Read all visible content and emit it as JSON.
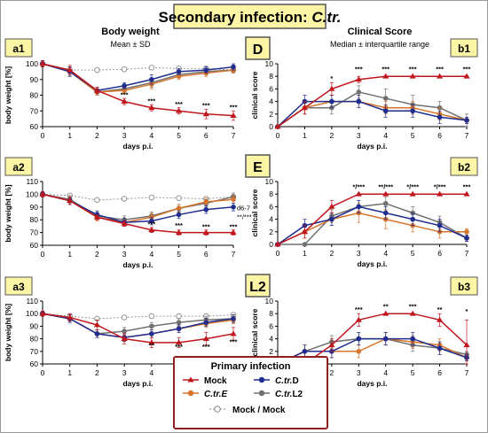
{
  "figure": {
    "title_prefix": "Secondary infection: ",
    "title_pathogen": "C.tr.",
    "left_header": "Body weight",
    "left_subheader": "Mean ± SD",
    "right_header": "Clinical Score",
    "right_subheader": "Median ± interquartile range"
  },
  "colors": {
    "mock": "#c0161d",
    "ctrD": "#1f2d8f",
    "ctrE": "#d6742b",
    "ctrL2": "#707070",
    "mockmock": "#8a8a8a",
    "title_box_fill": "#fdf5a6",
    "title_box_stroke": "#555555",
    "legend_border": "#8f1f1f"
  },
  "legend": {
    "title": "Primary infection",
    "mock": "Mock",
    "ctrD_prefix": "C.tr.",
    "ctrD_suffix": "D",
    "ctrE_prefix": "C.tr.",
    "ctrE_suffix": "E",
    "ctrL2_prefix": "C.tr.",
    "ctrL2_suffix": "L2",
    "mockmock": "Mock / Mock"
  },
  "chart_data": [
    {
      "id": "a1",
      "panel_label": "a1",
      "type": "line",
      "title": "",
      "xlabel": "days p.i.",
      "ylabel": "body weight [%]",
      "x": [
        0,
        1,
        2,
        3,
        4,
        5,
        6,
        7
      ],
      "xticks": [
        "0",
        "1",
        "2",
        "3",
        "4",
        "5",
        "6",
        "7"
      ],
      "ylim": [
        60,
        100
      ],
      "yticks": [
        "60",
        "70",
        "80",
        "90",
        "100"
      ],
      "series": [
        {
          "key": "mockmock",
          "values": [
            100,
            96,
            96,
            96.5,
            97.5,
            97,
            97,
            96
          ],
          "err": [
            1,
            1,
            1,
            1,
            1,
            1,
            1,
            1
          ]
        },
        {
          "key": "ctrL2",
          "values": [
            100,
            95,
            82,
            84,
            88,
            93,
            95,
            96
          ],
          "err": [
            2,
            3,
            2,
            2,
            3,
            2,
            2,
            2
          ]
        },
        {
          "key": "ctrE",
          "values": [
            100,
            95,
            82,
            83,
            87,
            92,
            94,
            96
          ],
          "err": [
            2,
            3,
            2,
            2,
            3,
            2,
            2,
            2
          ]
        },
        {
          "key": "ctrD",
          "values": [
            100,
            95,
            83,
            86,
            90,
            95,
            96,
            98
          ],
          "err": [
            2,
            3,
            2,
            2,
            3,
            2,
            2,
            2
          ]
        },
        {
          "key": "mock",
          "values": [
            100,
            96,
            83,
            76,
            72,
            70,
            68,
            67
          ],
          "err": [
            2,
            3,
            2,
            2,
            2,
            2,
            3,
            3
          ]
        }
      ],
      "annotations": [
        {
          "x": 3,
          "y": 79,
          "text": "***"
        },
        {
          "x": 4,
          "y": 75,
          "text": "***"
        },
        {
          "x": 5,
          "y": 73,
          "text": "***"
        },
        {
          "x": 6,
          "y": 72,
          "text": "***"
        },
        {
          "x": 7,
          "y": 71,
          "text": "***"
        }
      ]
    },
    {
      "id": "a2",
      "panel_label": "a2",
      "type": "line",
      "title": "",
      "xlabel": "days p.i.",
      "ylabel": "body weight [%]",
      "x": [
        0,
        1,
        2,
        3,
        4,
        5,
        6,
        7
      ],
      "xticks": [
        "0",
        "1",
        "2",
        "3",
        "4",
        "5",
        "6",
        "7"
      ],
      "ylim": [
        60,
        110
      ],
      "yticks": [
        "60",
        "70",
        "80",
        "90",
        "100",
        "110"
      ],
      "series": [
        {
          "key": "mockmock",
          "values": [
            100,
            99,
            95.5,
            96.5,
            97.5,
            97,
            96.5,
            98
          ],
          "err": [
            1,
            1,
            1,
            1,
            1,
            1,
            1,
            1
          ]
        },
        {
          "key": "ctrL2",
          "values": [
            100,
            96,
            83,
            80,
            83,
            89,
            93,
            98
          ],
          "err": [
            2,
            3,
            3,
            3,
            3,
            3,
            3,
            3
          ]
        },
        {
          "key": "ctrE",
          "values": [
            100,
            95,
            82,
            78,
            82,
            89,
            94,
            96
          ],
          "err": [
            2,
            3,
            3,
            3,
            3,
            3,
            3,
            3
          ]
        },
        {
          "key": "ctrD",
          "values": [
            100,
            95,
            84,
            78,
            79,
            84,
            88,
            90
          ],
          "err": [
            2,
            3,
            3,
            3,
            3,
            3,
            3,
            3
          ]
        },
        {
          "key": "mock",
          "values": [
            100,
            95,
            82,
            77,
            72,
            70,
            70,
            70
          ],
          "err": [
            2,
            3,
            2,
            2,
            2,
            2,
            2,
            2
          ]
        }
      ],
      "annotations": [
        {
          "x": 4,
          "y": 75,
          "text": "***"
        },
        {
          "x": 5,
          "y": 74,
          "text": "***"
        },
        {
          "x": 6,
          "y": 73,
          "text": "***"
        },
        {
          "x": 7,
          "y": 73,
          "text": "***"
        }
      ],
      "side_note_1": "d6-7",
      "side_note_2": "**/***"
    },
    {
      "id": "a3",
      "panel_label": "a3",
      "type": "line",
      "title": "",
      "xlabel": "days p.i.",
      "ylabel": "body weight [%]",
      "x": [
        0,
        1,
        2,
        3,
        4,
        5,
        6,
        7
      ],
      "xticks": [
        "0",
        "1",
        "2",
        "3",
        "4",
        "5",
        "6",
        "7"
      ],
      "ylim": [
        60,
        110
      ],
      "yticks": [
        "60",
        "70",
        "80",
        "90",
        "100",
        "110"
      ],
      "series": [
        {
          "key": "mockmock",
          "values": [
            100,
            98,
            96,
            97,
            98,
            98,
            98,
            99
          ],
          "err": [
            1,
            1,
            1,
            1,
            1,
            1,
            1,
            1
          ]
        },
        {
          "key": "ctrL2",
          "values": [
            100,
            96,
            84,
            86,
            90,
            93,
            95,
            96
          ],
          "err": [
            2,
            3,
            3,
            3,
            3,
            3,
            3,
            3
          ]
        },
        {
          "key": "ctrE",
          "values": [
            100,
            96,
            84,
            81,
            84,
            88,
            92,
            95
          ],
          "err": [
            2,
            3,
            3,
            3,
            3,
            3,
            3,
            3
          ]
        },
        {
          "key": "ctrD",
          "values": [
            100,
            96,
            84,
            81,
            84,
            88,
            93,
            96
          ],
          "err": [
            2,
            3,
            3,
            3,
            3,
            3,
            3,
            3
          ]
        },
        {
          "key": "mock",
          "values": [
            100,
            97,
            91,
            80,
            77,
            77,
            80,
            84
          ],
          "err": [
            2,
            3,
            4,
            4,
            4,
            4,
            5,
            5
          ]
        }
      ],
      "annotations": [
        {
          "x": 4,
          "y": 73,
          "text": "**"
        },
        {
          "x": 5,
          "y": 72,
          "text": "***"
        },
        {
          "x": 6,
          "y": 72,
          "text": "***"
        },
        {
          "x": 7,
          "y": 76,
          "text": "***"
        }
      ]
    },
    {
      "id": "b1",
      "panel_label": "b1",
      "pathogen_label": "D",
      "type": "line",
      "title": "",
      "xlabel": "days p.i.",
      "ylabel": "clinical score",
      "x": [
        0,
        1,
        2,
        3,
        4,
        5,
        6,
        7
      ],
      "xticks": [
        "0",
        "1",
        "2",
        "3",
        "4",
        "5",
        "6",
        "7"
      ],
      "ylim": [
        0,
        10
      ],
      "yticks": [
        "0",
        "2",
        "4",
        "6",
        "8",
        "10"
      ],
      "series": [
        {
          "key": "ctrL2",
          "values": [
            0,
            3,
            3,
            5.5,
            4.5,
            3.5,
            3,
            1
          ],
          "err": [
            0,
            1,
            1,
            1,
            1.5,
            1.5,
            1,
            1
          ]
        },
        {
          "key": "ctrE",
          "values": [
            0,
            3,
            4,
            4,
            3,
            3,
            2,
            1
          ],
          "err": [
            0,
            1,
            1,
            1,
            1,
            1,
            1,
            0.5
          ]
        },
        {
          "key": "ctrD",
          "values": [
            0,
            4,
            4,
            4,
            2.5,
            2.5,
            1.5,
            1
          ],
          "err": [
            0,
            1,
            1,
            1,
            1,
            1,
            1,
            0.5
          ]
        },
        {
          "key": "mock",
          "values": [
            0,
            3,
            6,
            7.5,
            8,
            8,
            8,
            8
          ],
          "err": [
            0,
            1,
            1,
            0.5,
            0,
            0,
            0,
            0
          ]
        }
      ],
      "annotations": [
        {
          "x": 2,
          "y": 7.3,
          "text": "*"
        },
        {
          "x": 3,
          "y": 8.8,
          "text": "***"
        },
        {
          "x": 4,
          "y": 8.8,
          "text": "***"
        },
        {
          "x": 5,
          "y": 8.8,
          "text": "***"
        },
        {
          "x": 6,
          "y": 8.8,
          "text": "***"
        },
        {
          "x": 7,
          "y": 8.8,
          "text": "***"
        }
      ]
    },
    {
      "id": "b2",
      "panel_label": "b2",
      "pathogen_label": "E",
      "type": "line",
      "title": "",
      "xlabel": "days p.i.",
      "ylabel": "clinical score",
      "x": [
        0,
        1,
        2,
        3,
        4,
        5,
        6,
        7
      ],
      "xticks": [
        "0",
        "1",
        "2",
        "3",
        "4",
        "5",
        "6",
        "7"
      ],
      "ylim": [
        0,
        10
      ],
      "yticks": [
        "0",
        "2",
        "4",
        "6",
        "8",
        "10"
      ],
      "series": [
        {
          "key": "ctrL2",
          "values": [
            0,
            0,
            4.5,
            6,
            6.5,
            5,
            3.5,
            1
          ],
          "err": [
            0,
            0,
            1,
            1,
            1,
            1,
            1,
            0.5
          ]
        },
        {
          "key": "ctrE",
          "values": [
            0,
            2,
            4,
            5,
            4,
            3,
            2,
            2
          ],
          "err": [
            0,
            1,
            1,
            1.5,
            1.5,
            1,
            1,
            0.5
          ]
        },
        {
          "key": "ctrD",
          "values": [
            0,
            3,
            4,
            6,
            5,
            4,
            3,
            1
          ],
          "err": [
            0,
            1,
            1,
            1,
            1,
            1,
            1,
            0.5
          ]
        },
        {
          "key": "mock",
          "values": [
            0,
            2,
            6,
            8,
            8,
            8,
            8,
            8
          ],
          "err": [
            0,
            1,
            1,
            0,
            0,
            0,
            0,
            0
          ]
        }
      ],
      "annotations": [
        {
          "x": 3,
          "y": 8.8,
          "text": "*/***"
        },
        {
          "x": 4,
          "y": 8.8,
          "text": "**/***"
        },
        {
          "x": 5,
          "y": 8.8,
          "text": "*/***"
        },
        {
          "x": 6,
          "y": 8.8,
          "text": "*/***"
        },
        {
          "x": 7,
          "y": 8.8,
          "text": "***"
        }
      ]
    },
    {
      "id": "b3",
      "panel_label": "b3",
      "pathogen_label": "L2",
      "type": "line",
      "title": "",
      "xlabel": "days p.i.",
      "ylabel": "clinical score",
      "x": [
        0,
        1,
        2,
        3,
        4,
        5,
        6,
        7
      ],
      "xticks": [
        "0",
        "1",
        "2",
        "3",
        "4",
        "5",
        "6",
        "7"
      ],
      "ylim": [
        0,
        10
      ],
      "yticks": [
        "0",
        "2",
        "4",
        "6",
        "8",
        "10"
      ],
      "series": [
        {
          "key": "ctrL2",
          "values": [
            0,
            2,
            3.5,
            4,
            4,
            3,
            2.5,
            1.5
          ],
          "err": [
            0,
            1,
            1,
            1,
            1,
            1,
            1,
            0.5
          ]
        },
        {
          "key": "ctrE",
          "values": [
            0,
            2,
            2,
            2,
            4,
            3.5,
            3,
            1
          ],
          "err": [
            0,
            1,
            1,
            1,
            1,
            1,
            1,
            0.5
          ]
        },
        {
          "key": "ctrD",
          "values": [
            0,
            2,
            2,
            4,
            4,
            4,
            2.5,
            1
          ],
          "err": [
            0,
            1,
            1,
            1,
            1,
            1,
            1,
            0.5
          ]
        },
        {
          "key": "mock",
          "values": [
            0,
            0,
            3,
            7,
            8,
            8,
            7,
            3
          ],
          "err": [
            0,
            0,
            1,
            1,
            0,
            0,
            1,
            4
          ]
        }
      ],
      "annotations": [
        {
          "x": 3,
          "y": 8.3,
          "text": "***"
        },
        {
          "x": 4,
          "y": 8.8,
          "text": "**"
        },
        {
          "x": 5,
          "y": 8.8,
          "text": "***"
        },
        {
          "x": 6,
          "y": 8.3,
          "text": "**"
        },
        {
          "x": 7,
          "y": 8.0,
          "text": "*"
        }
      ]
    }
  ]
}
